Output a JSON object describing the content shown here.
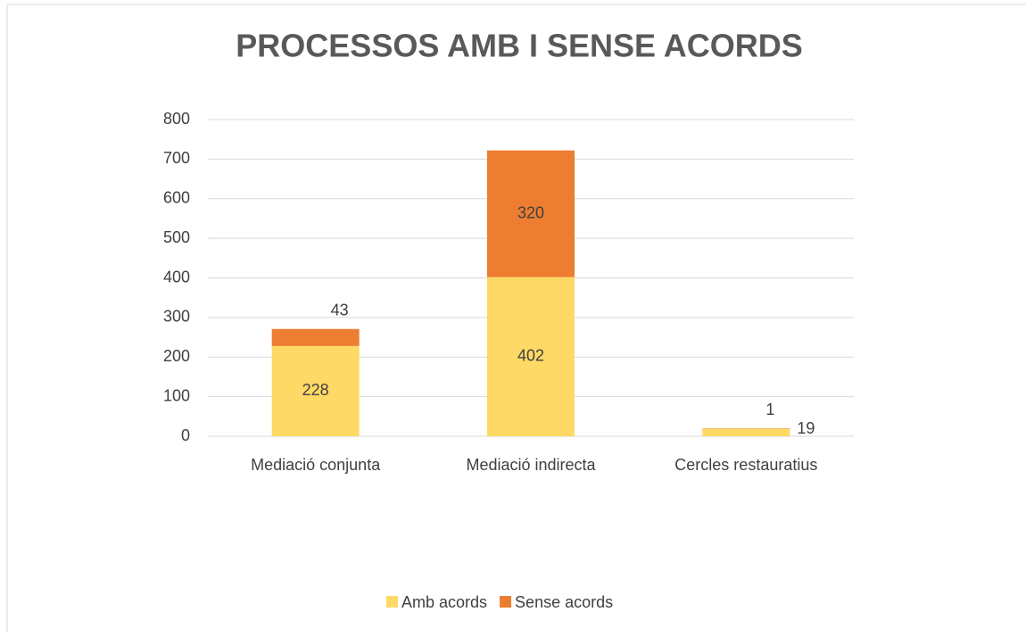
{
  "chart_data": {
    "type": "stacked_bar",
    "title": "PROCESSOS AMB I SENSE ACORDS",
    "categories": [
      "Mediació conjunta",
      "Mediació indirecta",
      "Cercles restauratius"
    ],
    "series": [
      {
        "name": "Amb acords",
        "color": "#ffd966",
        "values": [
          228,
          402,
          19
        ]
      },
      {
        "name": "Sense acords",
        "color": "#ed7d31",
        "values": [
          43,
          320,
          1
        ]
      }
    ],
    "ylim": [
      0,
      800
    ],
    "yticks": [
      0,
      100,
      200,
      300,
      400,
      500,
      600,
      700,
      800
    ],
    "grid": true,
    "legend": "bottom"
  }
}
